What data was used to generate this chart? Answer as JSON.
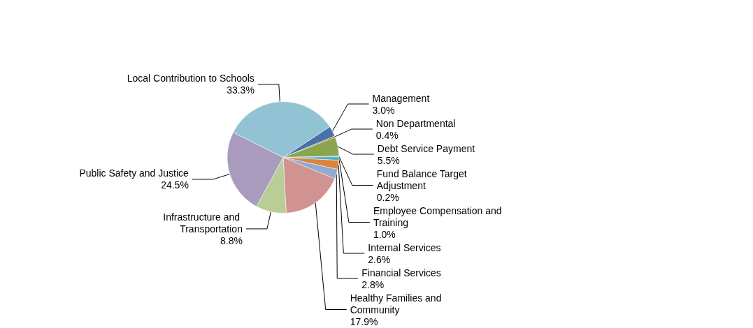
{
  "chart_data": {
    "type": "pie",
    "categories": [
      "Management",
      "Non Departmental",
      "Debt Service Payment",
      "Fund Balance Target Adjustment",
      "Employee Compensation and Training",
      "Internal Services",
      "Financial Services",
      "Healthy Families and Community",
      "Infrastructure and Transportation",
      "Public Safety and Justice",
      "Local Contribution to Schools"
    ],
    "values": [
      3.0,
      0.4,
      5.5,
      0.2,
      1.0,
      2.6,
      2.8,
      17.9,
      8.8,
      24.5,
      33.3
    ],
    "value_labels": [
      "3.0%",
      "0.4%",
      "5.5%",
      "0.2%",
      "1.0%",
      "2.6%",
      "2.8%",
      "17.9%",
      "8.8%",
      "24.5%",
      "33.3%"
    ],
    "colors": [
      "#4572a7",
      "#c0504d",
      "#89a54e",
      "#3d8ebf",
      "#4bacc6",
      "#db843d",
      "#93a9cf",
      "#d19392",
      "#b9cd96",
      "#a99bbd",
      "#92c3d4"
    ],
    "legend": false
  }
}
